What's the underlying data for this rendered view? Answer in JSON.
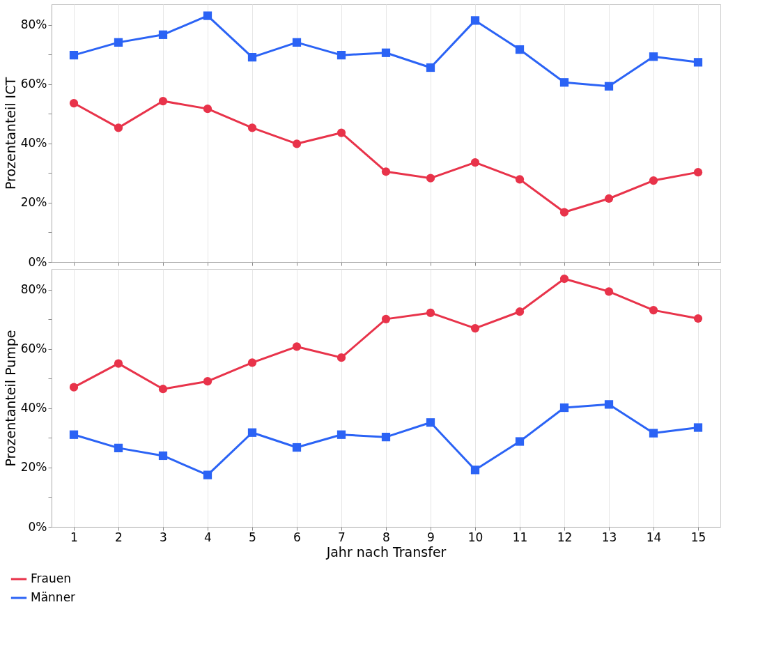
{
  "chart_data": [
    {
      "type": "line",
      "ylabel": "Prozentanteil ICT",
      "x": [
        1,
        2,
        3,
        4,
        5,
        6,
        7,
        8,
        9,
        10,
        11,
        12,
        13,
        14,
        15
      ],
      "xlim": [
        0.5,
        15.5
      ],
      "xticks": [
        1,
        2,
        3,
        4,
        5,
        6,
        7,
        8,
        9,
        10,
        11,
        12,
        13,
        14,
        15
      ],
      "ylim": [
        0,
        87
      ],
      "yticks": [
        {
          "value": 0,
          "label": "0%"
        },
        {
          "value": 10,
          "label": null
        },
        {
          "value": 20,
          "label": "20%"
        },
        {
          "value": 30,
          "label": null
        },
        {
          "value": 40,
          "label": "40%"
        },
        {
          "value": 50,
          "label": null
        },
        {
          "value": 60,
          "label": "60%"
        },
        {
          "value": 70,
          "label": null
        },
        {
          "value": 80,
          "label": "80%"
        }
      ],
      "tick_labels": "y",
      "grid": "x",
      "legend": "bottom left",
      "line_style": "solid",
      "series": [
        {
          "name": "Frauen",
          "color": "#e8334a",
          "marker": "circle",
          "values": [
            53.6,
            45.3,
            54.3,
            51.7,
            45.3,
            39.9,
            43.6,
            30.5,
            28.3,
            33.6,
            27.9,
            16.8,
            21.4,
            27.5,
            30.3
          ]
        },
        {
          "name": "Männer",
          "color": "#2b63f5",
          "marker": "square",
          "values": [
            69.8,
            74.1,
            76.7,
            83.1,
            69.1,
            74.1,
            69.8,
            70.6,
            65.6,
            81.5,
            71.7,
            60.6,
            59.3,
            69.3,
            67.4
          ]
        }
      ]
    },
    {
      "type": "line",
      "ylabel": "Prozentanteil Pumpe",
      "xlabel": "Jahr nach Transfer",
      "x": [
        1,
        2,
        3,
        4,
        5,
        6,
        7,
        8,
        9,
        10,
        11,
        12,
        13,
        14,
        15
      ],
      "xlim": [
        0.5,
        15.5
      ],
      "xticks": [
        1,
        2,
        3,
        4,
        5,
        6,
        7,
        8,
        9,
        10,
        11,
        12,
        13,
        14,
        15
      ],
      "ylim": [
        0,
        87
      ],
      "yticks": [
        {
          "value": 0,
          "label": "0%"
        },
        {
          "value": 10,
          "label": null
        },
        {
          "value": 20,
          "label": "20%"
        },
        {
          "value": 30,
          "label": null
        },
        {
          "value": 40,
          "label": "40%"
        },
        {
          "value": 50,
          "label": null
        },
        {
          "value": 60,
          "label": "60%"
        },
        {
          "value": 70,
          "label": null
        },
        {
          "value": 80,
          "label": "80%"
        }
      ],
      "grid": "x",
      "legend": "bottom left",
      "line_style": "solid",
      "series": [
        {
          "name": "Frauen",
          "color": "#e8334a",
          "marker": "circle",
          "values": [
            47.1,
            55.1,
            46.5,
            49.1,
            55.4,
            60.8,
            57.1,
            70.1,
            72.2,
            67.0,
            72.6,
            83.7,
            79.4,
            73.1,
            70.3
          ]
        },
        {
          "name": "Männer",
          "color": "#2b63f5",
          "marker": "square",
          "values": [
            31.1,
            26.6,
            24.0,
            17.5,
            31.8,
            26.8,
            31.1,
            30.3,
            35.2,
            19.2,
            28.8,
            40.2,
            41.3,
            31.6,
            33.5
          ]
        }
      ]
    }
  ]
}
